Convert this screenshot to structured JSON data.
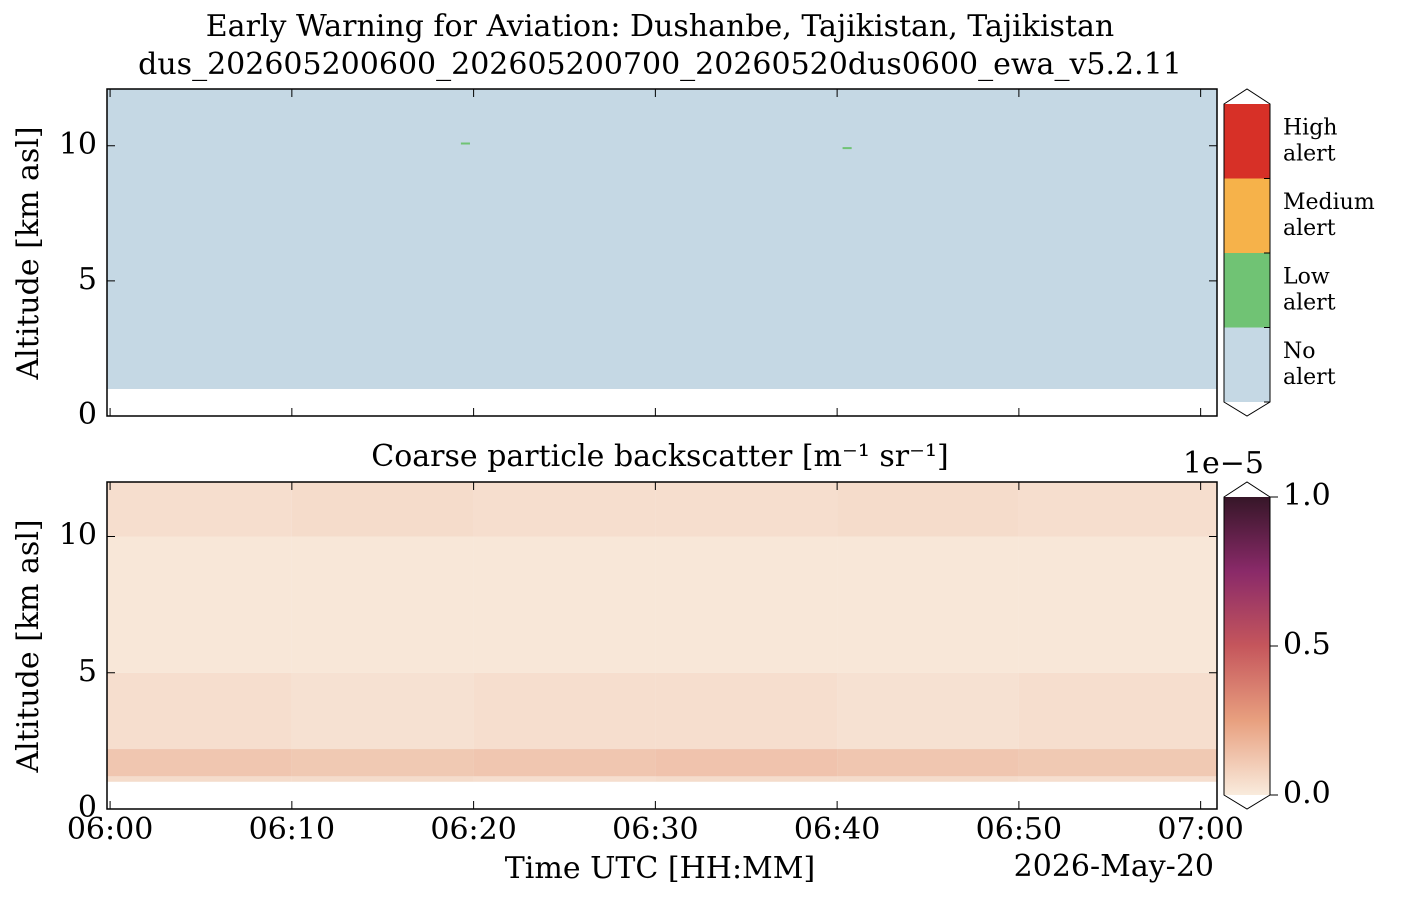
{
  "chart_data": [
    {
      "type": "category_heatmap",
      "title": "Early Warning for Aviation: Dushanbe, Tajikistan, Tajikistan",
      "subtitle": "dus_202605200600_202605200700_20260520dus0600_ewa_v5.2.11",
      "y_label": "Altitude [km asl]",
      "xlim": [
        -0.17,
        60.9
      ],
      "xticks": [
        0,
        10,
        20,
        30,
        40,
        50,
        60
      ],
      "ylim": [
        0,
        12.1
      ],
      "yticks": [
        0,
        5,
        10
      ],
      "levels": [
        {
          "label": [
            "No",
            "alert"
          ],
          "color": "#c5d8e4"
        },
        {
          "label": [
            "Low",
            "alert"
          ],
          "color": "#70c374"
        },
        {
          "label": [
            "Medium",
            "alert"
          ],
          "color": "#f6b24a"
        },
        {
          "label": [
            "High",
            "alert"
          ],
          "color": "#d73027"
        }
      ],
      "cells": [
        {
          "x0": -0.17,
          "x1": 60.9,
          "y0": 1.0,
          "y1": 12.1,
          "level": 0
        },
        {
          "x0": 19.3,
          "x1": 19.8,
          "y0": 10.05,
          "y1": 10.12,
          "level": 1
        },
        {
          "x0": 40.3,
          "x1": 40.8,
          "y0": 9.88,
          "y1": 9.95,
          "level": 1
        }
      ]
    },
    {
      "type": "heatmap",
      "title": "Coarse particle backscatter [m⁻¹ sr⁻¹]",
      "x_label": "Time UTC [HH:MM]",
      "date_label": "2026-May-20",
      "y_label": "Altitude [km asl]",
      "xlim": [
        -0.17,
        60.9
      ],
      "xticks": [
        {
          "value": 0,
          "label": "06:00"
        },
        {
          "value": 10,
          "label": "06:10"
        },
        {
          "value": 20,
          "label": "06:20"
        },
        {
          "value": 30,
          "label": "06:30"
        },
        {
          "value": 40,
          "label": "06:40"
        },
        {
          "value": 50,
          "label": "06:50"
        },
        {
          "value": 60,
          "label": "07:00"
        }
      ],
      "ylim": [
        0,
        12
      ],
      "yticks": [
        0,
        5,
        10
      ],
      "colorbar_offset": "1e−5",
      "clim": [
        0,
        1
      ],
      "cticks": [
        {
          "value": 0,
          "label": "0.0"
        },
        0.5,
        {
          "value": 1,
          "label": "1.0"
        }
      ],
      "colormap": [
        "#f9ebdd",
        "#e8a07f",
        "#c5565c",
        "#8a2a69",
        "#361628"
      ],
      "x_edges": [
        -0.17,
        10,
        20,
        30,
        40,
        50,
        60.9
      ],
      "y_edges": [
        1.0,
        1.2,
        2.2,
        5,
        10,
        12
      ],
      "z": [
        [
          0.06,
          0.06,
          0.05,
          0.06,
          0.06,
          0.05
        ],
        [
          0.14,
          0.13,
          0.14,
          0.15,
          0.14,
          0.13
        ],
        [
          0.05,
          0.04,
          0.05,
          0.05,
          0.04,
          0.05
        ],
        [
          0.02,
          0.02,
          0.02,
          0.02,
          0.02,
          0.02
        ],
        [
          0.05,
          0.06,
          0.05,
          0.05,
          0.06,
          0.05
        ]
      ]
    }
  ]
}
